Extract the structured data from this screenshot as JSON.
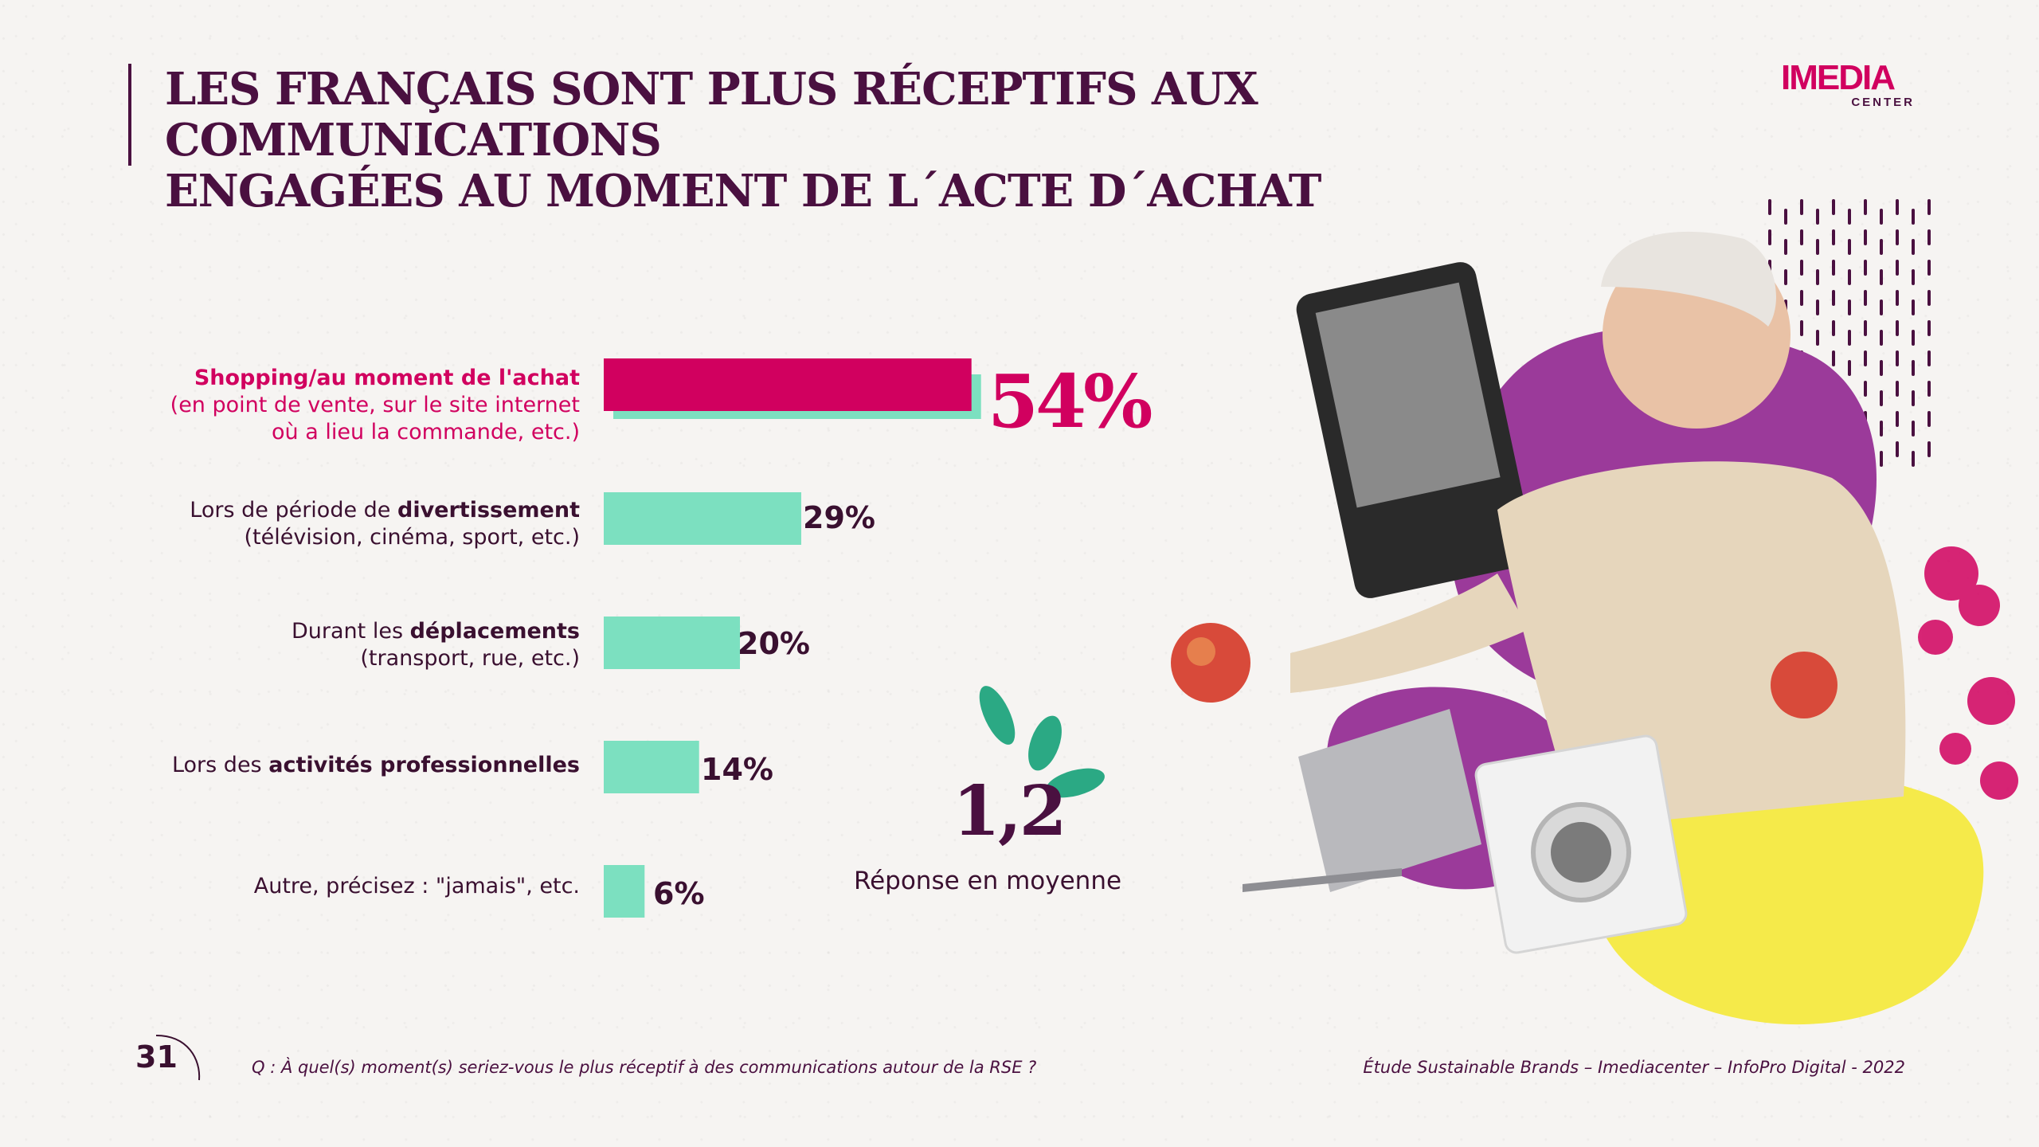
{
  "title": {
    "line1": "LES FRANÇAIS SONT PLUS RÉCEPTIFS AUX COMMUNICATIONS",
    "line2": "ENGAGÉES AU MOMENT DE L´ACTE D´ACHAT"
  },
  "logo": {
    "main": "IMEDIA",
    "sub": "CENTER"
  },
  "chart_data": {
    "type": "bar",
    "orientation": "horizontal",
    "categories": [
      "Shopping/au moment de l'achat (en point de vente, sur le site internet où a lieu la commande, etc.)",
      "Lors de période de divertissement (télévision, cinéma, sport, etc.)",
      "Durant les déplacements (transport, rue, etc.)",
      "Lors des activités professionnelles",
      "Autre, précisez : \"jamais\", etc."
    ],
    "values": [
      54,
      29,
      20,
      14,
      6
    ],
    "value_labels": [
      "54%",
      "29%",
      "20%",
      "14%",
      "6%"
    ],
    "unit": "%",
    "xlim": [
      0,
      100
    ],
    "grid": false,
    "highlight_index": 0,
    "colors": {
      "bar": "#7ce0c0",
      "highlight": "#d1005f",
      "highlight_text": "#d1005f",
      "text": "#3a1030"
    }
  },
  "labels": [
    {
      "pre": "",
      "bold": "Shopping/au moment de l'achat",
      "post": "",
      "sub1": "(en point de vente, sur le site internet",
      "sub2": "où a lieu la commande, etc.)"
    },
    {
      "pre": "Lors de période de ",
      "bold": "divertissement",
      "post": "",
      "sub1": "(télévision, cinéma, sport, etc.)",
      "sub2": ""
    },
    {
      "pre": "Durant les ",
      "bold": "déplacements",
      "post": "",
      "sub1": "(transport, rue, etc.)",
      "sub2": ""
    },
    {
      "pre": "Lors des ",
      "bold": "activités professionnelles",
      "post": "",
      "sub1": "",
      "sub2": ""
    },
    {
      "pre": "Autre, précisez : \"jamais\", etc.",
      "bold": "",
      "post": "",
      "sub1": "",
      "sub2": ""
    }
  ],
  "average": {
    "value": "1,2",
    "label": "Réponse en moyenne"
  },
  "footer": {
    "page_number": "31",
    "question": "Q : À quel(s) moment(s) seriez-vous le plus réceptif à des communications autour de la RSE ?",
    "source": "Étude Sustainable Brands – Imediacenter – InfoPro Digital - 2022"
  },
  "colors": {
    "title": "#4a1040",
    "accent": "#d1005f",
    "purple_blob": "#9b3a9a",
    "yellow_blob": "#f5ea4a",
    "mint": "#7ce0c0",
    "background": "#f6f4f2"
  }
}
